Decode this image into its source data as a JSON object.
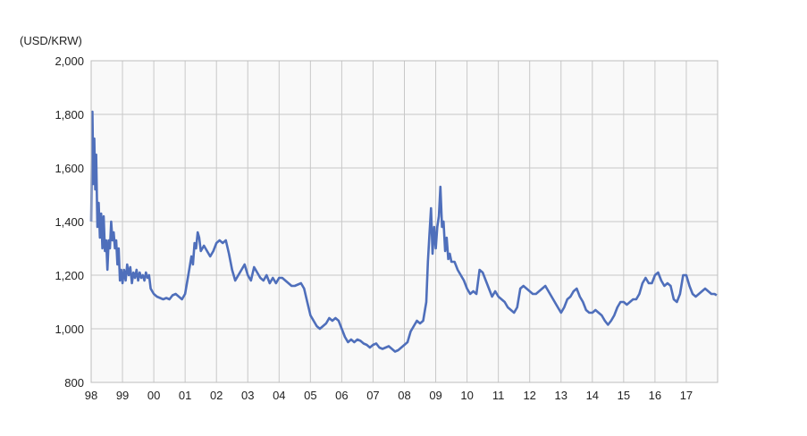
{
  "chart_data": {
    "type": "line",
    "title": "",
    "unit_label": "(USD/KRW)",
    "xlabel": "",
    "ylabel": "",
    "x_ticks": [
      "98",
      "99",
      "00",
      "01",
      "02",
      "03",
      "04",
      "05",
      "06",
      "07",
      "08",
      "09",
      "10",
      "11",
      "12",
      "13",
      "14",
      "15",
      "16",
      "17"
    ],
    "y_ticks": [
      "800",
      "1,000",
      "1,200",
      "1,400",
      "1,600",
      "1,800",
      "2,000"
    ],
    "xlim": [
      1998.0,
      2018.0
    ],
    "ylim": [
      800,
      2000
    ],
    "grid": true,
    "colors": {
      "line": "#4f6fbb",
      "plot_bg": "#f9f9f9",
      "grid": "#c8c8c8"
    },
    "series": [
      {
        "values": [
          [
            1998.0,
            1400
          ],
          [
            1998.04,
            1810
          ],
          [
            1998.07,
            1540
          ],
          [
            1998.1,
            1710
          ],
          [
            1998.13,
            1520
          ],
          [
            1998.16,
            1650
          ],
          [
            1998.2,
            1380
          ],
          [
            1998.24,
            1470
          ],
          [
            1998.28,
            1340
          ],
          [
            1998.32,
            1430
          ],
          [
            1998.36,
            1300
          ],
          [
            1998.4,
            1420
          ],
          [
            1998.44,
            1290
          ],
          [
            1998.48,
            1330
          ],
          [
            1998.52,
            1220
          ],
          [
            1998.56,
            1330
          ],
          [
            1998.6,
            1300
          ],
          [
            1998.64,
            1400
          ],
          [
            1998.68,
            1330
          ],
          [
            1998.72,
            1360
          ],
          [
            1998.76,
            1300
          ],
          [
            1998.8,
            1330
          ],
          [
            1998.84,
            1240
          ],
          [
            1998.88,
            1300
          ],
          [
            1998.92,
            1180
          ],
          [
            1998.96,
            1220
          ],
          [
            1999.0,
            1170
          ],
          [
            1999.05,
            1220
          ],
          [
            1999.1,
            1180
          ],
          [
            1999.15,
            1240
          ],
          [
            1999.2,
            1200
          ],
          [
            1999.25,
            1230
          ],
          [
            1999.3,
            1170
          ],
          [
            1999.35,
            1210
          ],
          [
            1999.4,
            1190
          ],
          [
            1999.45,
            1220
          ],
          [
            1999.5,
            1180
          ],
          [
            1999.55,
            1210
          ],
          [
            1999.6,
            1190
          ],
          [
            1999.65,
            1200
          ],
          [
            1999.7,
            1180
          ],
          [
            1999.75,
            1210
          ],
          [
            1999.8,
            1190
          ],
          [
            1999.85,
            1200
          ],
          [
            1999.9,
            1150
          ],
          [
            1999.95,
            1140
          ],
          [
            2000.0,
            1130
          ],
          [
            2000.1,
            1120
          ],
          [
            2000.2,
            1115
          ],
          [
            2000.3,
            1110
          ],
          [
            2000.4,
            1115
          ],
          [
            2000.5,
            1110
          ],
          [
            2000.6,
            1125
          ],
          [
            2000.7,
            1130
          ],
          [
            2000.8,
            1120
          ],
          [
            2000.9,
            1110
          ],
          [
            2001.0,
            1130
          ],
          [
            2001.1,
            1200
          ],
          [
            2001.2,
            1270
          ],
          [
            2001.25,
            1240
          ],
          [
            2001.3,
            1320
          ],
          [
            2001.35,
            1300
          ],
          [
            2001.4,
            1360
          ],
          [
            2001.45,
            1340
          ],
          [
            2001.5,
            1290
          ],
          [
            2001.6,
            1310
          ],
          [
            2001.7,
            1290
          ],
          [
            2001.8,
            1270
          ],
          [
            2001.9,
            1290
          ],
          [
            2002.0,
            1320
          ],
          [
            2002.1,
            1330
          ],
          [
            2002.2,
            1320
          ],
          [
            2002.3,
            1330
          ],
          [
            2002.4,
            1280
          ],
          [
            2002.5,
            1220
          ],
          [
            2002.6,
            1180
          ],
          [
            2002.7,
            1200
          ],
          [
            2002.8,
            1220
          ],
          [
            2002.9,
            1240
          ],
          [
            2003.0,
            1200
          ],
          [
            2003.1,
            1180
          ],
          [
            2003.2,
            1230
          ],
          [
            2003.3,
            1210
          ],
          [
            2003.4,
            1190
          ],
          [
            2003.5,
            1180
          ],
          [
            2003.6,
            1200
          ],
          [
            2003.7,
            1170
          ],
          [
            2003.8,
            1190
          ],
          [
            2003.9,
            1170
          ],
          [
            2004.0,
            1190
          ],
          [
            2004.1,
            1190
          ],
          [
            2004.2,
            1180
          ],
          [
            2004.3,
            1170
          ],
          [
            2004.4,
            1160
          ],
          [
            2004.5,
            1160
          ],
          [
            2004.6,
            1165
          ],
          [
            2004.7,
            1170
          ],
          [
            2004.8,
            1150
          ],
          [
            2004.9,
            1100
          ],
          [
            2005.0,
            1050
          ],
          [
            2005.1,
            1030
          ],
          [
            2005.2,
            1010
          ],
          [
            2005.3,
            1000
          ],
          [
            2005.4,
            1010
          ],
          [
            2005.5,
            1020
          ],
          [
            2005.6,
            1040
          ],
          [
            2005.7,
            1030
          ],
          [
            2005.8,
            1040
          ],
          [
            2005.9,
            1030
          ],
          [
            2006.0,
            1000
          ],
          [
            2006.1,
            970
          ],
          [
            2006.2,
            950
          ],
          [
            2006.3,
            960
          ],
          [
            2006.4,
            950
          ],
          [
            2006.5,
            960
          ],
          [
            2006.6,
            955
          ],
          [
            2006.7,
            945
          ],
          [
            2006.8,
            940
          ],
          [
            2006.9,
            930
          ],
          [
            2007.0,
            940
          ],
          [
            2007.1,
            945
          ],
          [
            2007.2,
            930
          ],
          [
            2007.3,
            925
          ],
          [
            2007.4,
            930
          ],
          [
            2007.5,
            935
          ],
          [
            2007.6,
            925
          ],
          [
            2007.7,
            915
          ],
          [
            2007.8,
            920
          ],
          [
            2007.9,
            930
          ],
          [
            2008.0,
            940
          ],
          [
            2008.1,
            950
          ],
          [
            2008.2,
            990
          ],
          [
            2008.3,
            1010
          ],
          [
            2008.4,
            1030
          ],
          [
            2008.5,
            1020
          ],
          [
            2008.6,
            1030
          ],
          [
            2008.7,
            1100
          ],
          [
            2008.75,
            1250
          ],
          [
            2008.8,
            1350
          ],
          [
            2008.85,
            1450
          ],
          [
            2008.9,
            1280
          ],
          [
            2008.95,
            1380
          ],
          [
            2009.0,
            1300
          ],
          [
            2009.05,
            1380
          ],
          [
            2009.1,
            1420
          ],
          [
            2009.15,
            1530
          ],
          [
            2009.2,
            1380
          ],
          [
            2009.25,
            1400
          ],
          [
            2009.3,
            1290
          ],
          [
            2009.35,
            1340
          ],
          [
            2009.4,
            1260
          ],
          [
            2009.45,
            1280
          ],
          [
            2009.5,
            1250
          ],
          [
            2009.6,
            1250
          ],
          [
            2009.7,
            1220
          ],
          [
            2009.8,
            1200
          ],
          [
            2009.9,
            1180
          ],
          [
            2010.0,
            1150
          ],
          [
            2010.1,
            1130
          ],
          [
            2010.2,
            1140
          ],
          [
            2010.3,
            1130
          ],
          [
            2010.4,
            1220
          ],
          [
            2010.5,
            1210
          ],
          [
            2010.6,
            1180
          ],
          [
            2010.7,
            1150
          ],
          [
            2010.8,
            1120
          ],
          [
            2010.9,
            1140
          ],
          [
            2011.0,
            1120
          ],
          [
            2011.1,
            1110
          ],
          [
            2011.2,
            1100
          ],
          [
            2011.3,
            1080
          ],
          [
            2011.4,
            1070
          ],
          [
            2011.5,
            1060
          ],
          [
            2011.6,
            1080
          ],
          [
            2011.7,
            1150
          ],
          [
            2011.8,
            1160
          ],
          [
            2011.9,
            1150
          ],
          [
            2012.0,
            1140
          ],
          [
            2012.1,
            1130
          ],
          [
            2012.2,
            1130
          ],
          [
            2012.3,
            1140
          ],
          [
            2012.4,
            1150
          ],
          [
            2012.5,
            1160
          ],
          [
            2012.6,
            1140
          ],
          [
            2012.7,
            1120
          ],
          [
            2012.8,
            1100
          ],
          [
            2012.9,
            1080
          ],
          [
            2013.0,
            1060
          ],
          [
            2013.1,
            1080
          ],
          [
            2013.2,
            1110
          ],
          [
            2013.3,
            1120
          ],
          [
            2013.4,
            1140
          ],
          [
            2013.5,
            1150
          ],
          [
            2013.6,
            1120
          ],
          [
            2013.7,
            1100
          ],
          [
            2013.8,
            1070
          ],
          [
            2013.9,
            1060
          ],
          [
            2014.0,
            1060
          ],
          [
            2014.1,
            1070
          ],
          [
            2014.2,
            1060
          ],
          [
            2014.3,
            1050
          ],
          [
            2014.4,
            1030
          ],
          [
            2014.5,
            1015
          ],
          [
            2014.6,
            1030
          ],
          [
            2014.7,
            1050
          ],
          [
            2014.8,
            1080
          ],
          [
            2014.9,
            1100
          ],
          [
            2015.0,
            1100
          ],
          [
            2015.1,
            1090
          ],
          [
            2015.2,
            1100
          ],
          [
            2015.3,
            1110
          ],
          [
            2015.4,
            1110
          ],
          [
            2015.5,
            1130
          ],
          [
            2015.6,
            1170
          ],
          [
            2015.7,
            1190
          ],
          [
            2015.8,
            1170
          ],
          [
            2015.9,
            1170
          ],
          [
            2016.0,
            1200
          ],
          [
            2016.1,
            1210
          ],
          [
            2016.2,
            1180
          ],
          [
            2016.3,
            1160
          ],
          [
            2016.4,
            1170
          ],
          [
            2016.5,
            1160
          ],
          [
            2016.6,
            1110
          ],
          [
            2016.7,
            1100
          ],
          [
            2016.8,
            1130
          ],
          [
            2016.9,
            1200
          ],
          [
            2017.0,
            1200
          ],
          [
            2017.1,
            1160
          ],
          [
            2017.2,
            1130
          ],
          [
            2017.3,
            1120
          ],
          [
            2017.4,
            1130
          ],
          [
            2017.5,
            1140
          ],
          [
            2017.6,
            1150
          ],
          [
            2017.7,
            1140
          ],
          [
            2017.8,
            1130
          ],
          [
            2017.9,
            1130
          ],
          [
            2017.97,
            1125
          ]
        ]
      }
    ]
  }
}
